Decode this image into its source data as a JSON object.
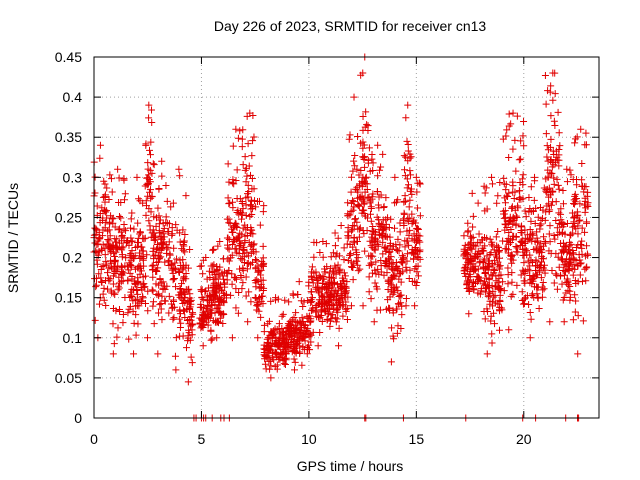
{
  "chart_data": {
    "type": "scatter",
    "title": "Day 226 of 2023, SRMTID for receiver cn13",
    "xlabel": "GPS time / hours",
    "ylabel": "SRMTID / TECUs",
    "xlim": [
      0,
      23.5
    ],
    "ylim": [
      0,
      0.45
    ],
    "x_ticks": [
      0,
      5,
      10,
      15,
      20
    ],
    "x_tick_labels": [
      "0",
      "5",
      "10",
      "15",
      "20"
    ],
    "y_ticks": [
      0,
      0.05,
      0.1,
      0.15,
      0.2,
      0.25,
      0.3,
      0.35,
      0.4,
      0.45
    ],
    "y_tick_labels": [
      "0",
      "0.05",
      "0.1",
      "0.15",
      "0.2",
      "0.25",
      "0.3",
      "0.35",
      "0.4",
      "0.45"
    ],
    "grid": true,
    "marker": "plus",
    "series_color": "#e00000",
    "segments": [
      {
        "t0": 0.0,
        "t1": 0.6,
        "low": 0.1,
        "high": 0.34,
        "peak": 0.31
      },
      {
        "t0": 0.6,
        "t1": 1.6,
        "low": 0.08,
        "high": 0.31,
        "peak": 0.29
      },
      {
        "t0": 1.6,
        "t1": 2.4,
        "low": 0.08,
        "high": 0.3,
        "peak": 0.26
      },
      {
        "t0": 2.4,
        "t1": 2.7,
        "low": 0.1,
        "high": 0.39,
        "peak": 0.38
      },
      {
        "t0": 2.7,
        "t1": 3.6,
        "low": 0.08,
        "high": 0.32,
        "peak": 0.3
      },
      {
        "t0": 3.6,
        "t1": 4.3,
        "low": 0.06,
        "high": 0.31,
        "peak": 0.25
      },
      {
        "t0": 4.3,
        "t1": 4.6,
        "low": 0.045,
        "high": 0.21,
        "peak": 0.18
      },
      {
        "t0": 4.9,
        "t1": 5.5,
        "low": 0.09,
        "high": 0.2,
        "peak": 0.17
      },
      {
        "t0": 5.5,
        "t1": 6.2,
        "low": 0.1,
        "high": 0.22,
        "peak": 0.2
      },
      {
        "t0": 6.2,
        "t1": 7.0,
        "low": 0.1,
        "high": 0.36,
        "peak": 0.32
      },
      {
        "t0": 7.0,
        "t1": 7.5,
        "low": 0.12,
        "high": 0.38,
        "peak": 0.34
      },
      {
        "t0": 7.5,
        "t1": 7.9,
        "low": 0.1,
        "high": 0.27,
        "peak": 0.23
      },
      {
        "t0": 7.9,
        "t1": 9.0,
        "low": 0.05,
        "high": 0.15,
        "peak": 0.12
      },
      {
        "t0": 9.0,
        "t1": 10.1,
        "low": 0.06,
        "high": 0.17,
        "peak": 0.14
      },
      {
        "t0": 10.1,
        "t1": 11.2,
        "low": 0.09,
        "high": 0.22,
        "peak": 0.2
      },
      {
        "t0": 11.2,
        "t1": 11.8,
        "low": 0.09,
        "high": 0.24,
        "peak": 0.2
      },
      {
        "t0": 11.8,
        "t1": 12.4,
        "low": 0.14,
        "high": 0.4,
        "peak": 0.33
      },
      {
        "t0": 12.4,
        "t1": 12.8,
        "low": 0.14,
        "high": 0.45,
        "peak": 0.42
      },
      {
        "t0": 12.8,
        "t1": 13.6,
        "low": 0.12,
        "high": 0.34,
        "peak": 0.3
      },
      {
        "t0": 13.6,
        "t1": 14.4,
        "low": 0.07,
        "high": 0.3,
        "peak": 0.26
      },
      {
        "t0": 14.4,
        "t1": 14.8,
        "low": 0.14,
        "high": 0.39,
        "peak": 0.37
      },
      {
        "t0": 14.8,
        "t1": 15.2,
        "low": 0.14,
        "high": 0.3,
        "peak": 0.26
      },
      {
        "t0": 17.2,
        "t1": 18.0,
        "low": 0.13,
        "high": 0.28,
        "peak": 0.24
      },
      {
        "t0": 18.0,
        "t1": 19.0,
        "low": 0.08,
        "high": 0.3,
        "peak": 0.25
      },
      {
        "t0": 19.0,
        "t1": 20.0,
        "low": 0.11,
        "high": 0.38,
        "peak": 0.34
      },
      {
        "t0": 20.0,
        "t1": 21.0,
        "low": 0.1,
        "high": 0.3,
        "peak": 0.27
      },
      {
        "t0": 21.0,
        "t1": 21.7,
        "low": 0.12,
        "high": 0.43,
        "peak": 0.4
      },
      {
        "t0": 21.7,
        "t1": 22.3,
        "low": 0.12,
        "high": 0.31,
        "peak": 0.27
      },
      {
        "t0": 22.3,
        "t1": 23.0,
        "low": 0.08,
        "high": 0.36,
        "peak": 0.33
      }
    ],
    "zero_points_x": [
      4.65,
      4.75,
      5.0,
      5.1,
      5.2,
      5.5,
      5.9,
      6.05,
      6.3,
      12.6,
      12.65,
      14.4,
      17.3,
      19.95,
      20.55,
      21.95,
      22.5,
      22.55
    ]
  }
}
